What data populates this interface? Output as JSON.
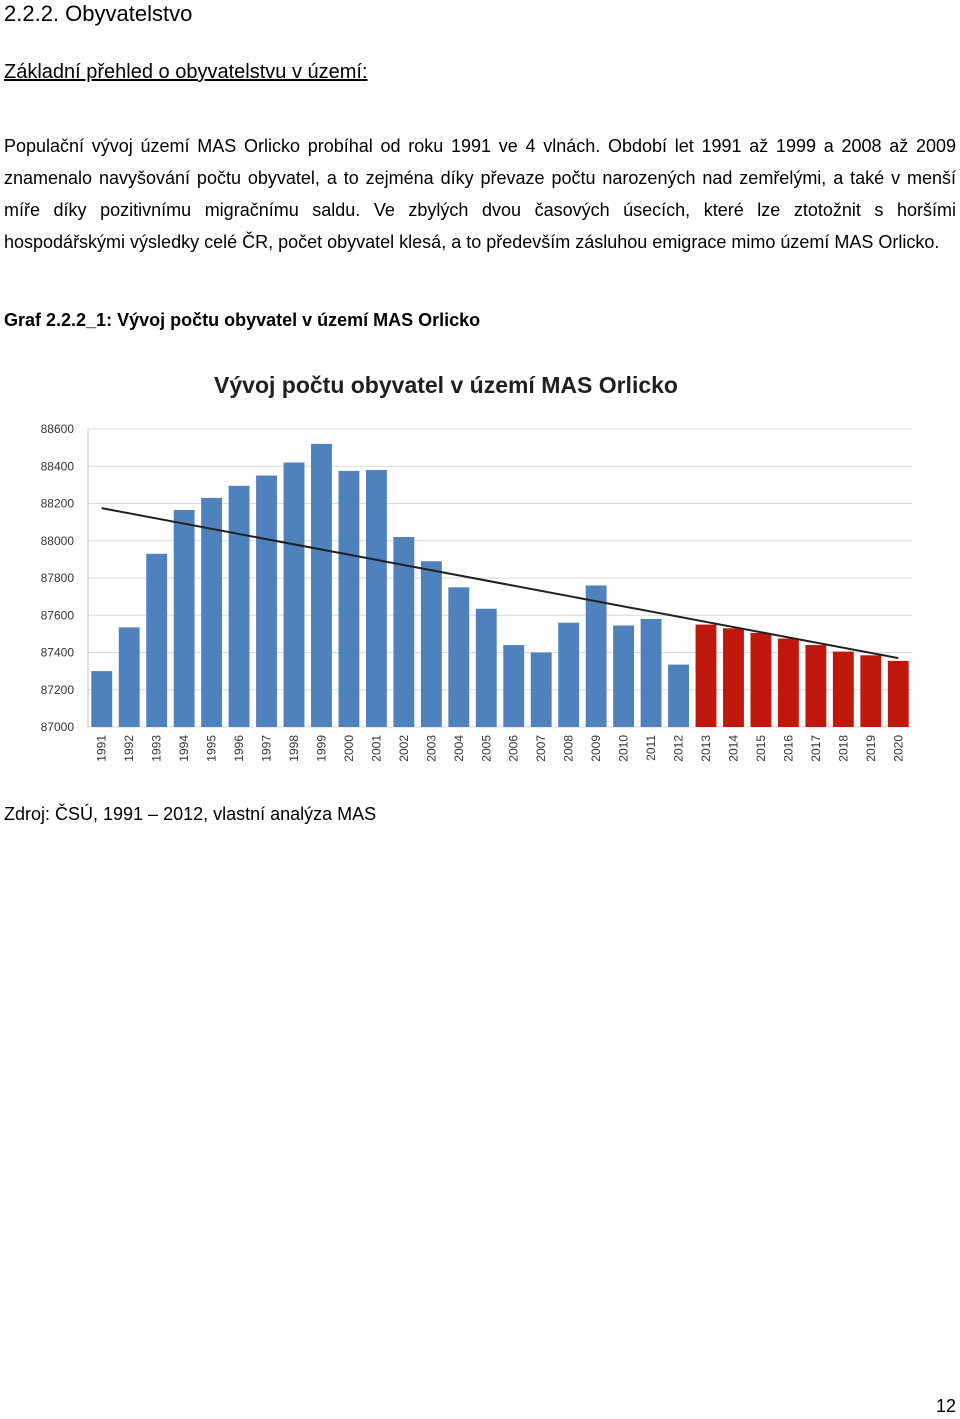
{
  "section": {
    "heading": "2.2.2. Obyvatelstvo",
    "subheading": "Základní přehled o obyvatelstvu v území:",
    "paragraph": "Populační vývoj území MAS Orlicko probíhal od roku 1991 ve 4 vlnách. Období let 1991 až 1999 a 2008 až 2009 znamenalo navyšování počtu obyvatel, a to zejména díky převaze počtu narozených nad zemřelými, a také v menší míře díky pozitivnímu migračnímu saldu. Ve zbylých dvou časových úsecích, které lze ztotožnit s horšími hospodářskými výsledky celé ČR, počet obyvatel klesá, a to především zásluhou emigrace mimo území MAS Orlicko."
  },
  "figure": {
    "caption": "Graf 2.2.2_1: Vývoj počtu obyvatel v území MAS Orlicko",
    "source": "Zdroj: ČSÚ, 1991 – 2012, vlastní analýza MAS"
  },
  "page": {
    "number": "12"
  },
  "chart_data": {
    "type": "bar",
    "title": "Vývoj počtu obyvatel v území MAS Orlicko",
    "xlabel": "",
    "ylabel": "",
    "ylim": [
      87000,
      88600
    ],
    "yticks": [
      87000,
      87200,
      87400,
      87600,
      87800,
      88000,
      88200,
      88400,
      88600
    ],
    "categories": [
      "1991",
      "1992",
      "1993",
      "1994",
      "1995",
      "1996",
      "1997",
      "1998",
      "1999",
      "2000",
      "2001",
      "2002",
      "2003",
      "2004",
      "2005",
      "2006",
      "2007",
      "2008",
      "2009",
      "2010",
      "2011",
      "2012",
      "2013",
      "2014",
      "2015",
      "2016",
      "2017",
      "2018",
      "2019",
      "2020"
    ],
    "values": [
      87300,
      87535,
      87930,
      88165,
      88230,
      88295,
      88350,
      88420,
      88520,
      88375,
      88380,
      88020,
      87890,
      87750,
      87635,
      87440,
      87400,
      87560,
      87760,
      87545,
      87580,
      87335,
      87550,
      87530,
      87505,
      87475,
      87440,
      87405,
      87385,
      87355
    ],
    "bar_colors": [
      "#4f81bd",
      "#4f81bd",
      "#4f81bd",
      "#4f81bd",
      "#4f81bd",
      "#4f81bd",
      "#4f81bd",
      "#4f81bd",
      "#4f81bd",
      "#4f81bd",
      "#4f81bd",
      "#4f81bd",
      "#4f81bd",
      "#4f81bd",
      "#4f81bd",
      "#4f81bd",
      "#4f81bd",
      "#4f81bd",
      "#4f81bd",
      "#4f81bd",
      "#4f81bd",
      "#4f81bd",
      "#c0180c",
      "#c0180c",
      "#c0180c",
      "#c0180c",
      "#c0180c",
      "#c0180c",
      "#c0180c",
      "#c0180c"
    ],
    "trendline": {
      "start": 88175,
      "end": 87370,
      "color": "#1f1f1f"
    },
    "grid": true,
    "legend": false
  }
}
